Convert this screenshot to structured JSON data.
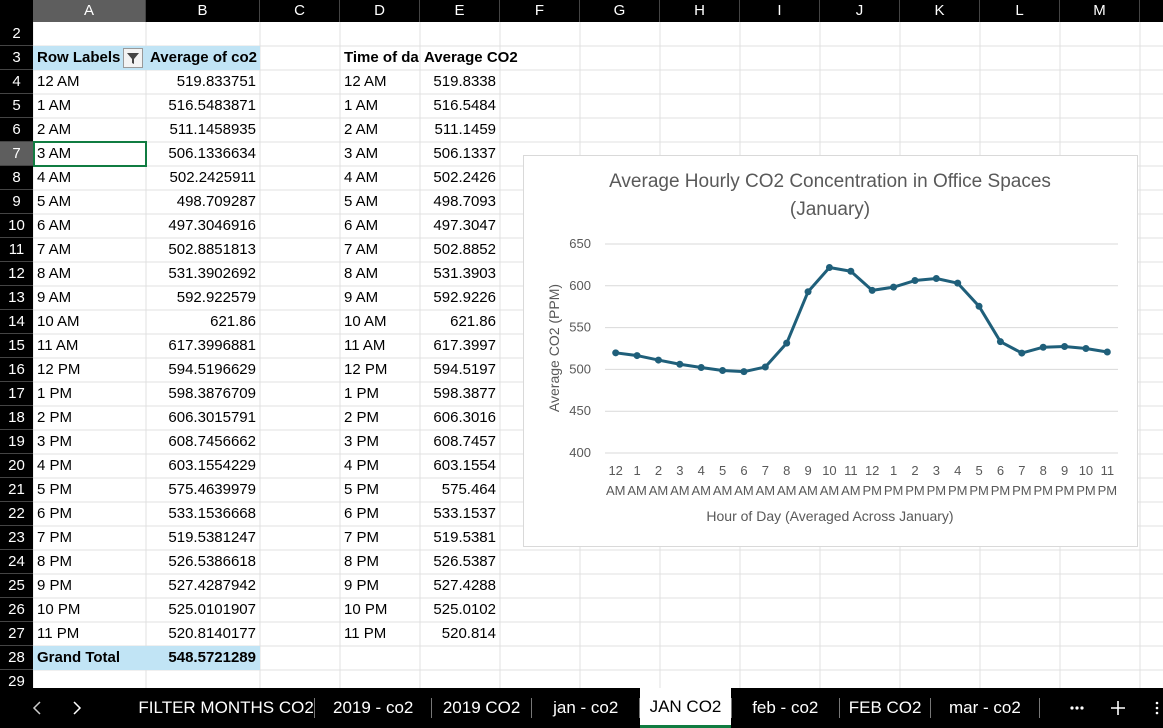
{
  "column_headers": [
    "A",
    "B",
    "C",
    "D",
    "E",
    "F",
    "G",
    "H",
    "I",
    "J",
    "K",
    "L",
    "M"
  ],
  "row_headers": [
    2,
    3,
    4,
    5,
    6,
    7,
    8,
    9,
    10,
    11,
    12,
    13,
    14,
    15,
    16,
    17,
    18,
    19,
    20,
    21,
    22,
    23,
    24,
    25,
    26,
    27,
    28,
    29
  ],
  "pivot_table": {
    "headers": [
      "Row Labels",
      "Average of co2"
    ],
    "rows": [
      [
        "12 AM",
        "519.833751"
      ],
      [
        "1 AM",
        "516.5483871"
      ],
      [
        "2 AM",
        "511.1458935"
      ],
      [
        "3 AM",
        "506.1336634"
      ],
      [
        "4 AM",
        "502.2425911"
      ],
      [
        "5 AM",
        "498.709287"
      ],
      [
        "6 AM",
        "497.3046916"
      ],
      [
        "7 AM",
        "502.8851813"
      ],
      [
        "8 AM",
        "531.3902692"
      ],
      [
        "9 AM",
        "592.922579"
      ],
      [
        "10 AM",
        "621.86"
      ],
      [
        "11 AM",
        "617.3996881"
      ],
      [
        "12 PM",
        "594.5196629"
      ],
      [
        "1 PM",
        "598.3876709"
      ],
      [
        "2 PM",
        "606.3015791"
      ],
      [
        "3 PM",
        "608.7456662"
      ],
      [
        "4 PM",
        "603.1554229"
      ],
      [
        "5 PM",
        "575.4639979"
      ],
      [
        "6 PM",
        "533.1536668"
      ],
      [
        "7 PM",
        "519.5381247"
      ],
      [
        "8 PM",
        "526.5386618"
      ],
      [
        "9 PM",
        "527.4287942"
      ],
      [
        "10 PM",
        "525.0101907"
      ],
      [
        "11 PM",
        "520.8140177"
      ]
    ],
    "grand_total": [
      "Grand Total",
      "548.5721289"
    ]
  },
  "summary_table": {
    "headers": [
      "Time of da",
      "Average CO2"
    ],
    "rows": [
      [
        "12 AM",
        "519.8338"
      ],
      [
        "1 AM",
        "516.5484"
      ],
      [
        "2 AM",
        "511.1459"
      ],
      [
        "3 AM",
        "506.1337"
      ],
      [
        "4 AM",
        "502.2426"
      ],
      [
        "5 AM",
        "498.7093"
      ],
      [
        "6 AM",
        "497.3047"
      ],
      [
        "7 AM",
        "502.8852"
      ],
      [
        "8 AM",
        "531.3903"
      ],
      [
        "9 AM",
        "592.9226"
      ],
      [
        "10 AM",
        "621.86"
      ],
      [
        "11 AM",
        "617.3997"
      ],
      [
        "12 PM",
        "594.5197"
      ],
      [
        "1 PM",
        "598.3877"
      ],
      [
        "2 PM",
        "606.3016"
      ],
      [
        "3 PM",
        "608.7457"
      ],
      [
        "4 PM",
        "603.1554"
      ],
      [
        "5 PM",
        "575.464"
      ],
      [
        "6 PM",
        "533.1537"
      ],
      [
        "7 PM",
        "519.5381"
      ],
      [
        "8 PM",
        "526.5387"
      ],
      [
        "9 PM",
        "527.4288"
      ],
      [
        "10 PM",
        "525.0102"
      ],
      [
        "11 PM",
        "520.814"
      ]
    ]
  },
  "chart_data": {
    "type": "line",
    "title": "Average Hourly CO2 Concentration in Office Spaces (January)",
    "x_label": "Hour of Day (Averaged Across January)",
    "y_label": "Average CO2 (PPM)",
    "categories": [
      "12 AM",
      "1 AM",
      "2 AM",
      "3 AM",
      "4 AM",
      "5 AM",
      "6 AM",
      "7 AM",
      "8 AM",
      "9 AM",
      "10 AM",
      "11 AM",
      "12 PM",
      "1 PM",
      "2 PM",
      "3 PM",
      "4 PM",
      "5 PM",
      "6 PM",
      "7 PM",
      "8 PM",
      "9 PM",
      "10 PM",
      "11 PM"
    ],
    "values": [
      519.833751,
      516.5483871,
      511.1458935,
      506.1336634,
      502.2425911,
      498.709287,
      497.3046916,
      502.8851813,
      531.3902692,
      592.922579,
      621.86,
      617.3996881,
      594.5196629,
      598.3876709,
      606.3015791,
      608.7456662,
      603.1554229,
      575.4639979,
      533.1536668,
      519.5381247,
      526.5386618,
      527.4287942,
      525.0101907,
      520.8140177
    ],
    "color": "#1f5f7a",
    "ylim": [
      400,
      650
    ],
    "yticks": [
      400,
      450,
      500,
      550,
      600,
      650
    ],
    "grid": true
  },
  "sheet_tabs": [
    {
      "name": "FILTER MONTHS CO2",
      "active": false
    },
    {
      "name": "2019 - co2",
      "active": false
    },
    {
      "name": "2019 CO2",
      "active": false
    },
    {
      "name": "jan - co2",
      "active": false
    },
    {
      "name": "JAN CO2",
      "active": true
    },
    {
      "name": "feb - co2",
      "active": false
    },
    {
      "name": "FEB CO2",
      "active": false
    },
    {
      "name": "mar - co2",
      "active": false
    }
  ]
}
